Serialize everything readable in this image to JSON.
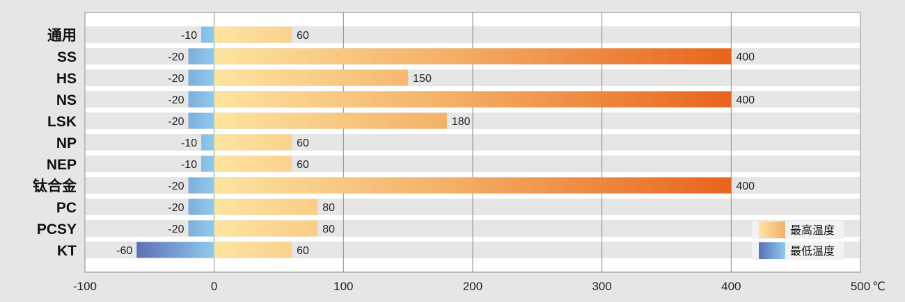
{
  "chart_data": {
    "type": "bar",
    "orientation": "horizontal",
    "categories": [
      "通用",
      "SS",
      "HS",
      "NS",
      "LSK",
      "NP",
      "NEP",
      "钛合金",
      "PC",
      "PCSY",
      "KT"
    ],
    "series": [
      {
        "name": "最高温度",
        "values": [
          60,
          400,
          150,
          400,
          180,
          60,
          60,
          400,
          80,
          80,
          60
        ]
      },
      {
        "name": "最低温度",
        "values": [
          -10,
          -20,
          -20,
          -20,
          -20,
          -10,
          -10,
          -20,
          -20,
          -20,
          -60
        ]
      }
    ],
    "xlim": [
      -100,
      500
    ],
    "xticks": [
      "-100",
      "0",
      "100",
      "200",
      "300",
      "400",
      "500"
    ],
    "x_unit": "℃",
    "grid": true,
    "legend_position": "bottom-right",
    "colors": {
      "max_start": "#fde4a0",
      "max_mid": "#f4b068",
      "max_end": "#e8641c",
      "min_start": "#5d6fb6",
      "min_end": "#8fcbee",
      "row_band": "#e6e6e6",
      "plot_bg": "#ffffff",
      "grid_line": "#8a8a8a"
    }
  }
}
